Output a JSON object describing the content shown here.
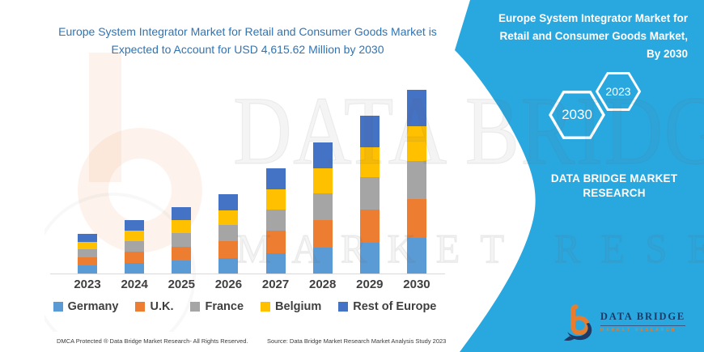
{
  "title": {
    "line1": "Europe System Integrator Market for Retail and Consumer Goods Market is",
    "line2": "Expected to Account for USD 4,615.62 Million by 2030"
  },
  "right_panel": {
    "heading": "Europe System Integrator Market for Retail and Consumer Goods Market, By 2030",
    "hexagon_large_label": "2030",
    "hexagon_small_label": "2023",
    "brand_text": "DATA BRIDGE MARKET RESEARCH",
    "logo_name": "DATA BRIDGE",
    "logo_subtext": "MARKET RESEARCH",
    "bg_color": "#29A8E0"
  },
  "watermark": {
    "line1": "DATA BRIDGE",
    "line2": "MARKET RESEARCH"
  },
  "footer": {
    "left": "DMCA Protected ® Data Bridge Market Research-  All Rights Reserved.",
    "right": "Source: Data Bridge Market Research  Market Analysis Study 2023"
  },
  "chart_data": {
    "type": "bar",
    "stacked": true,
    "title": "Europe System Integrator Market for Retail and Consumer Goods Market is Expected to Account for USD 4,615.62 Million by 2030",
    "unit": "USD Million",
    "categories": [
      "2023",
      "2024",
      "2025",
      "2026",
      "2027",
      "2028",
      "2029",
      "2030"
    ],
    "series": [
      {
        "name": "Germany",
        "color": "#5B9BD5",
        "values": [
          194,
          260,
          326,
          388,
          516,
          643,
          770,
          900
        ]
      },
      {
        "name": "U.K.",
        "color": "#ED7D31",
        "values": [
          209,
          280,
          351,
          418,
          555,
          692,
          830,
          969
        ]
      },
      {
        "name": "France",
        "color": "#A5A5A5",
        "values": [
          204,
          274,
          342,
          408,
          542,
          675,
          810,
          946
        ]
      },
      {
        "name": "Belgium",
        "color": "#FFC000",
        "values": [
          189,
          254,
          317,
          378,
          503,
          626,
          751,
          877
        ]
      },
      {
        "name": "Rest of Europe",
        "color": "#4472C4",
        "values": [
          199,
          267,
          334,
          398,
          529,
          659,
          789,
          923.62
        ]
      }
    ],
    "totals": [
      995,
      1335,
      1670,
      1990,
      2645,
      3295,
      3950,
      4615.62
    ],
    "labeled_value_2030": "USD 4,615.62 Million",
    "values_estimated_from_bar_heights": true,
    "ylim": [
      0,
      4828
    ],
    "y_axis_visible": false,
    "gridlines": false,
    "legend_position": "bottom"
  }
}
